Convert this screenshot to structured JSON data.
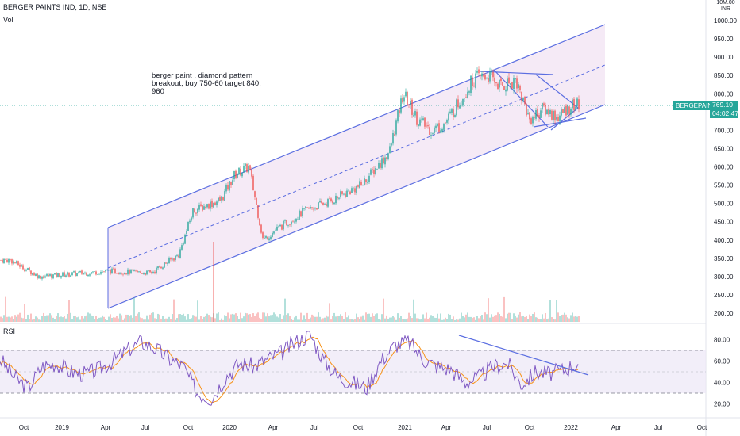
{
  "header": {
    "symbol": "BERGER PAINTS IND, 1D, NSE",
    "volume_label": "Vol",
    "currency_top": "10M.00",
    "currency": "INR",
    "rsi_label": "RSI"
  },
  "annotation": {
    "text": "berger paint , diamond pattern breakout, buy 750-60 target 840, 960"
  },
  "last_price": {
    "ticker": "BERGEPAINT",
    "value": "769.10",
    "countdown": "04:02:47"
  },
  "colors": {
    "up": "#26a69a",
    "down": "#ef5350",
    "channel": "#5b6ee1",
    "channel_fill": "#f3e6f5",
    "rsi_line": "#7e57c2",
    "rsi_ma": "#f7931a",
    "rsi_band": "#ede7f6",
    "price_line": "#26a69a"
  },
  "chart_data": [
    {
      "type": "candlestick",
      "title": "BERGER PAINTS IND, 1D, NSE",
      "x_ticks": [
        "Oct",
        "2019",
        "Apr",
        "Jul",
        "Oct",
        "2020",
        "Apr",
        "Jul",
        "Oct",
        "2021",
        "Apr",
        "Jul",
        "Oct",
        "2022",
        "Apr",
        "Jul",
        "Oct"
      ],
      "y_ticks": [
        "1000.00",
        "950.00",
        "900.00",
        "850.00",
        "800.00",
        "750.00",
        "700.00",
        "650.00",
        "600.00",
        "550.00",
        "500.00",
        "450.00",
        "400.00",
        "350.00",
        "300.00",
        "250.00",
        "200.00"
      ],
      "ylim": [
        188,
        1040
      ],
      "xlim": [
        0,
        932
      ],
      "grid": false,
      "key_points": {
        "x": [
          "2018-09",
          "2018-11",
          "2019-04",
          "2019-07",
          "2019-09",
          "2019-10",
          "2019-12",
          "2020-01",
          "2020-02",
          "2020-03",
          "2020-04",
          "2020-06",
          "2020-08",
          "2020-10",
          "2020-12",
          "2021-01",
          "2021-02",
          "2021-03",
          "2021-04",
          "2021-06",
          "2021-07",
          "2021-08",
          "2021-09",
          "2021-10",
          "2021-11",
          "2021-12",
          "2022-01"
        ],
        "close": [
          345,
          300,
          315,
          310,
          360,
          480,
          510,
          580,
          600,
          400,
          430,
          480,
          510,
          550,
          640,
          800,
          730,
          700,
          720,
          840,
          850,
          820,
          840,
          730,
          760,
          735,
          769
        ]
      },
      "last_value": 769.1,
      "series": [
        {
          "name": "Vol",
          "type": "bar",
          "note": "volume histogram at chart bottom"
        }
      ],
      "annotations": [
        "rising parallel channel",
        "diamond pattern",
        "dashed channel midline"
      ]
    },
    {
      "type": "line",
      "title": "RSI",
      "y_ticks": [
        "80.00",
        "60.00",
        "40.00",
        "20.00"
      ],
      "ylim": [
        8,
        92
      ],
      "band": [
        30,
        70
      ],
      "series": [
        {
          "name": "RSI",
          "values": [
            62,
            45,
            35,
            55,
            58,
            50,
            48,
            52,
            60,
            70,
            78,
            72,
            62,
            55,
            30,
            25,
            45,
            58,
            55,
            62,
            68,
            78,
            85,
            60,
            45,
            40,
            35,
            60,
            75,
            78,
            62,
            55,
            52,
            40,
            45,
            55,
            58,
            38,
            50,
            48,
            52,
            58
          ]
        }
      ]
    }
  ]
}
